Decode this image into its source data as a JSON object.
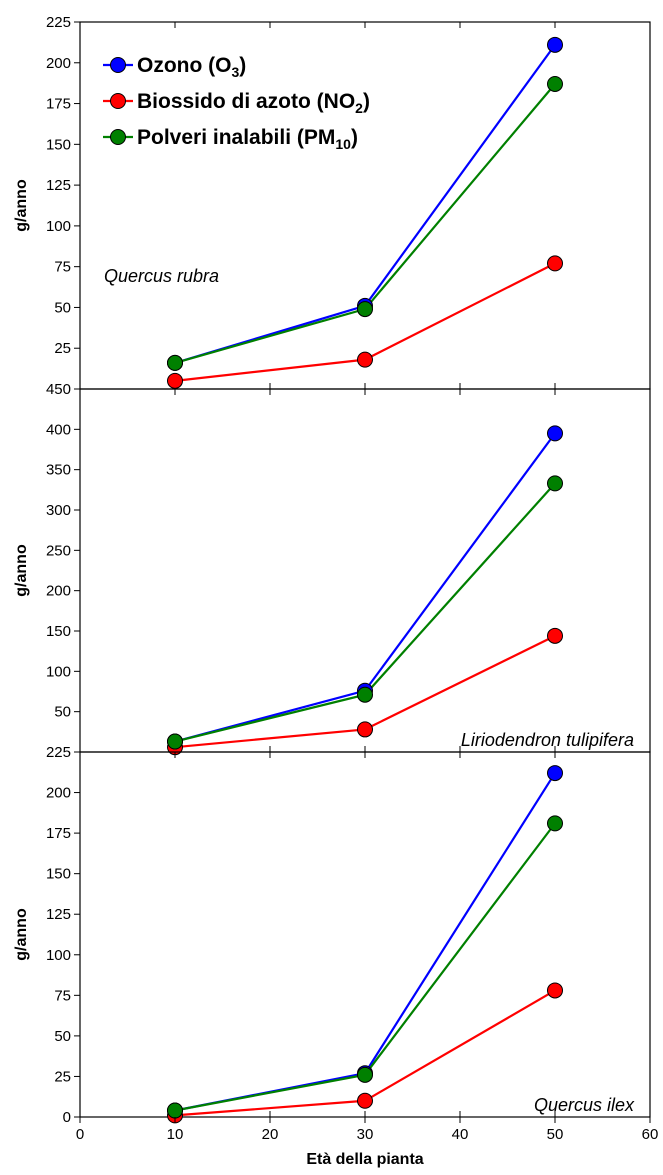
{
  "chart_data": {
    "type": "line",
    "xlabel": "Età della pianta",
    "x_ticks": [
      0,
      10,
      20,
      30,
      40,
      50,
      60
    ],
    "xlim": [
      0,
      60
    ],
    "legend": [
      {
        "id": "o3",
        "base": "Ozono (O",
        "sub": "3",
        "tail": ")",
        "color": "#0000ff"
      },
      {
        "id": "no2",
        "base": "Biossido di azoto (NO",
        "sub": "2",
        "tail": ")",
        "color": "#ff0000"
      },
      {
        "id": "pm10",
        "base": "Polveri inalabili (PM",
        "sub": "10",
        "tail": ")",
        "color": "#008000"
      }
    ],
    "legend_position": "top-left of first panel",
    "panels": [
      {
        "label": "Quercus rubra",
        "ylabel": "g/anno",
        "ylim": [
          0,
          225
        ],
        "y_ticks": [
          25,
          50,
          75,
          100,
          125,
          150,
          175,
          200,
          225
        ],
        "x": [
          10,
          30,
          50
        ],
        "series": [
          {
            "id": "o3",
            "values": [
              16,
              51,
              211
            ]
          },
          {
            "id": "no2",
            "values": [
              5,
              18,
              77
            ]
          },
          {
            "id": "pm10",
            "values": [
              16,
              49,
              187
            ]
          }
        ]
      },
      {
        "label": "Liriodendron tulipifera",
        "ylabel": "g/anno",
        "ylim": [
          0,
          450
        ],
        "y_ticks": [
          50,
          100,
          150,
          200,
          250,
          300,
          350,
          400,
          450
        ],
        "x": [
          10,
          30,
          50
        ],
        "series": [
          {
            "id": "o3",
            "values": [
              13,
              76,
              395
            ]
          },
          {
            "id": "no2",
            "values": [
              6,
              28,
              144
            ]
          },
          {
            "id": "pm10",
            "values": [
              13,
              71,
              333
            ]
          }
        ]
      },
      {
        "label": "Quercus ilex",
        "ylabel": "g/anno",
        "ylim": [
          0,
          225
        ],
        "y_ticks": [
          0,
          25,
          50,
          75,
          100,
          125,
          150,
          175,
          200,
          225
        ],
        "x": [
          10,
          30,
          50
        ],
        "series": [
          {
            "id": "o3",
            "values": [
              4,
              27,
              212
            ]
          },
          {
            "id": "no2",
            "values": [
              1,
              10,
              78
            ]
          },
          {
            "id": "pm10",
            "values": [
              4,
              26,
              181
            ]
          }
        ]
      }
    ]
  }
}
